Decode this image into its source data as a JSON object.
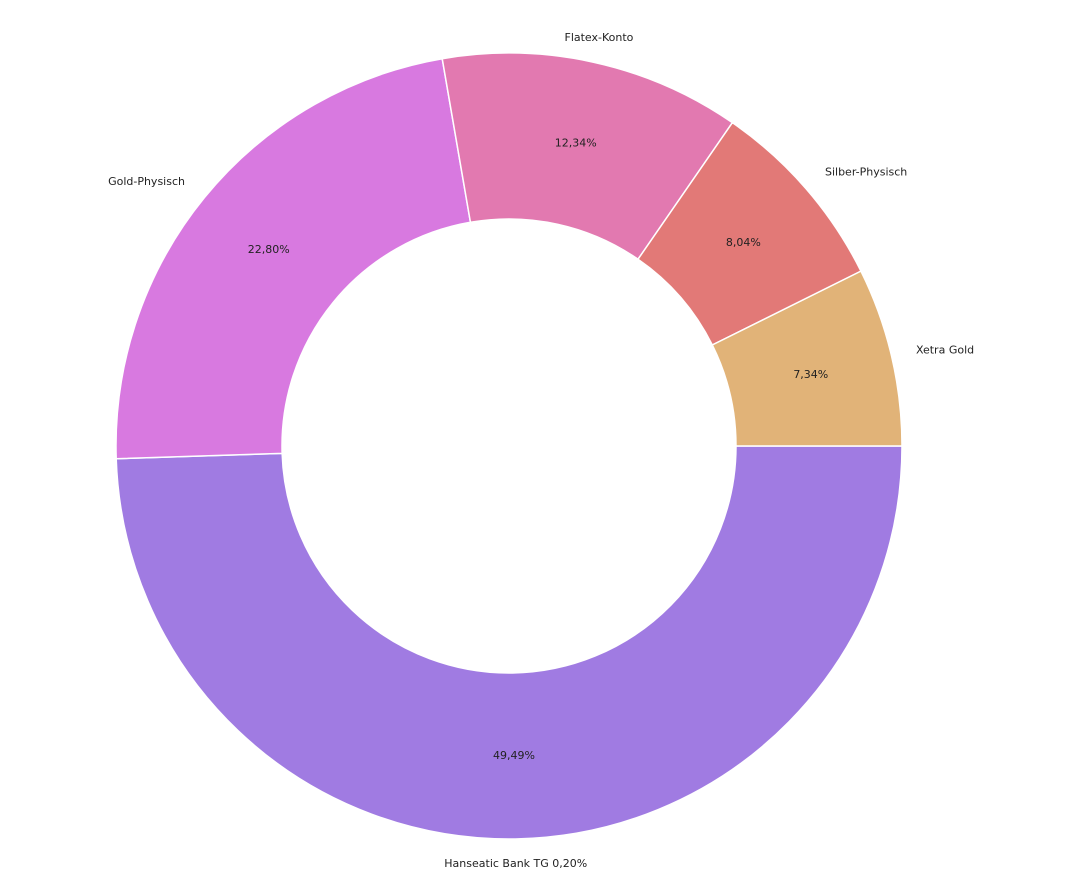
{
  "chart_data": {
    "type": "pie",
    "donut": true,
    "start_angle_deg": 0,
    "direction": "clockwise",
    "slices": [
      {
        "name": "Hanseatic Bank TG 0,20%",
        "value": 49.49,
        "percent_label": "49,49%",
        "color": "#a07be2"
      },
      {
        "name": "Gold-Physisch",
        "value": 22.8,
        "percent_label": "22,80%",
        "color": "#d879e0"
      },
      {
        "name": "Flatex-Konto",
        "value": 12.34,
        "percent_label": "12,34%",
        "color": "#e279b0"
      },
      {
        "name": "Silber-Physisch",
        "value": 8.04,
        "percent_label": "8,04%",
        "color": "#e27977"
      },
      {
        "name": "Xetra Gold",
        "value": 7.34,
        "percent_label": "7,34%",
        "color": "#e1b378"
      }
    ]
  }
}
